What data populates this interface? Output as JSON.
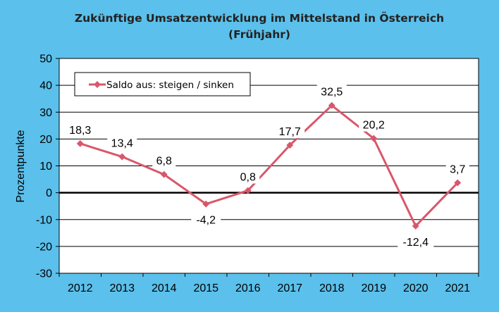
{
  "chart_data": {
    "type": "line",
    "title": "Zukünftige Umsatzentwicklung im Mittelstand in Österreich",
    "subtitle": "(Frühjahr)",
    "xlabel": "",
    "ylabel": "Prozentpunkte",
    "ylim": [
      -30,
      50
    ],
    "yticks": [
      "50",
      "40",
      "30",
      "20",
      "10",
      "0",
      "-10",
      "-20",
      "-30"
    ],
    "ytick_values": [
      50,
      40,
      30,
      20,
      10,
      0,
      -10,
      -20,
      -30
    ],
    "categories": [
      "2012",
      "2013",
      "2014",
      "2015",
      "2016",
      "2017",
      "2018",
      "2019",
      "2020",
      "2021"
    ],
    "series": [
      {
        "name": "Saldo aus: steigen / sinken",
        "values": [
          18.3,
          13.4,
          6.8,
          -4.2,
          0.8,
          17.7,
          32.5,
          20.2,
          -12.4,
          3.7
        ],
        "labels": [
          "18,3",
          "13,4",
          "6,8",
          "-4,2",
          "0,8",
          "17,7",
          "32,5",
          "20,2",
          "-12,4",
          "3,7"
        ],
        "color": "#d9576b"
      }
    ],
    "grid": true,
    "legend_position": "top-left",
    "colors": {
      "background": "#5bc0eb",
      "plot_area": "#ffffff",
      "gridline": "#000000",
      "zero_line": "#000000",
      "series": "#d9576b"
    }
  }
}
